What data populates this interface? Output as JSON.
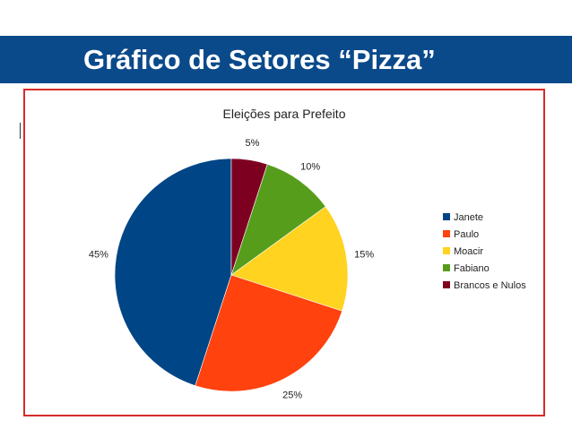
{
  "slide": {
    "title": "Gráfico de Setores “Pizza”",
    "band_color": "#0b4a8a",
    "frame_color": "#d62b2b"
  },
  "chart_data": {
    "type": "pie",
    "title": "Eleições para Prefeito",
    "categories": [
      "Janete",
      "Paulo",
      "Moacir",
      "Fabiano",
      "Brancos e Nulos"
    ],
    "values": [
      45,
      25,
      15,
      10,
      5
    ],
    "value_labels": [
      "45%",
      "25%",
      "15%",
      "10%",
      "5%"
    ],
    "colors": [
      "#004586",
      "#ff420e",
      "#ffd320",
      "#579d1c",
      "#7e0021"
    ],
    "start": "12 o'clock",
    "direction": "counterclockwise",
    "legend_position": "right"
  }
}
